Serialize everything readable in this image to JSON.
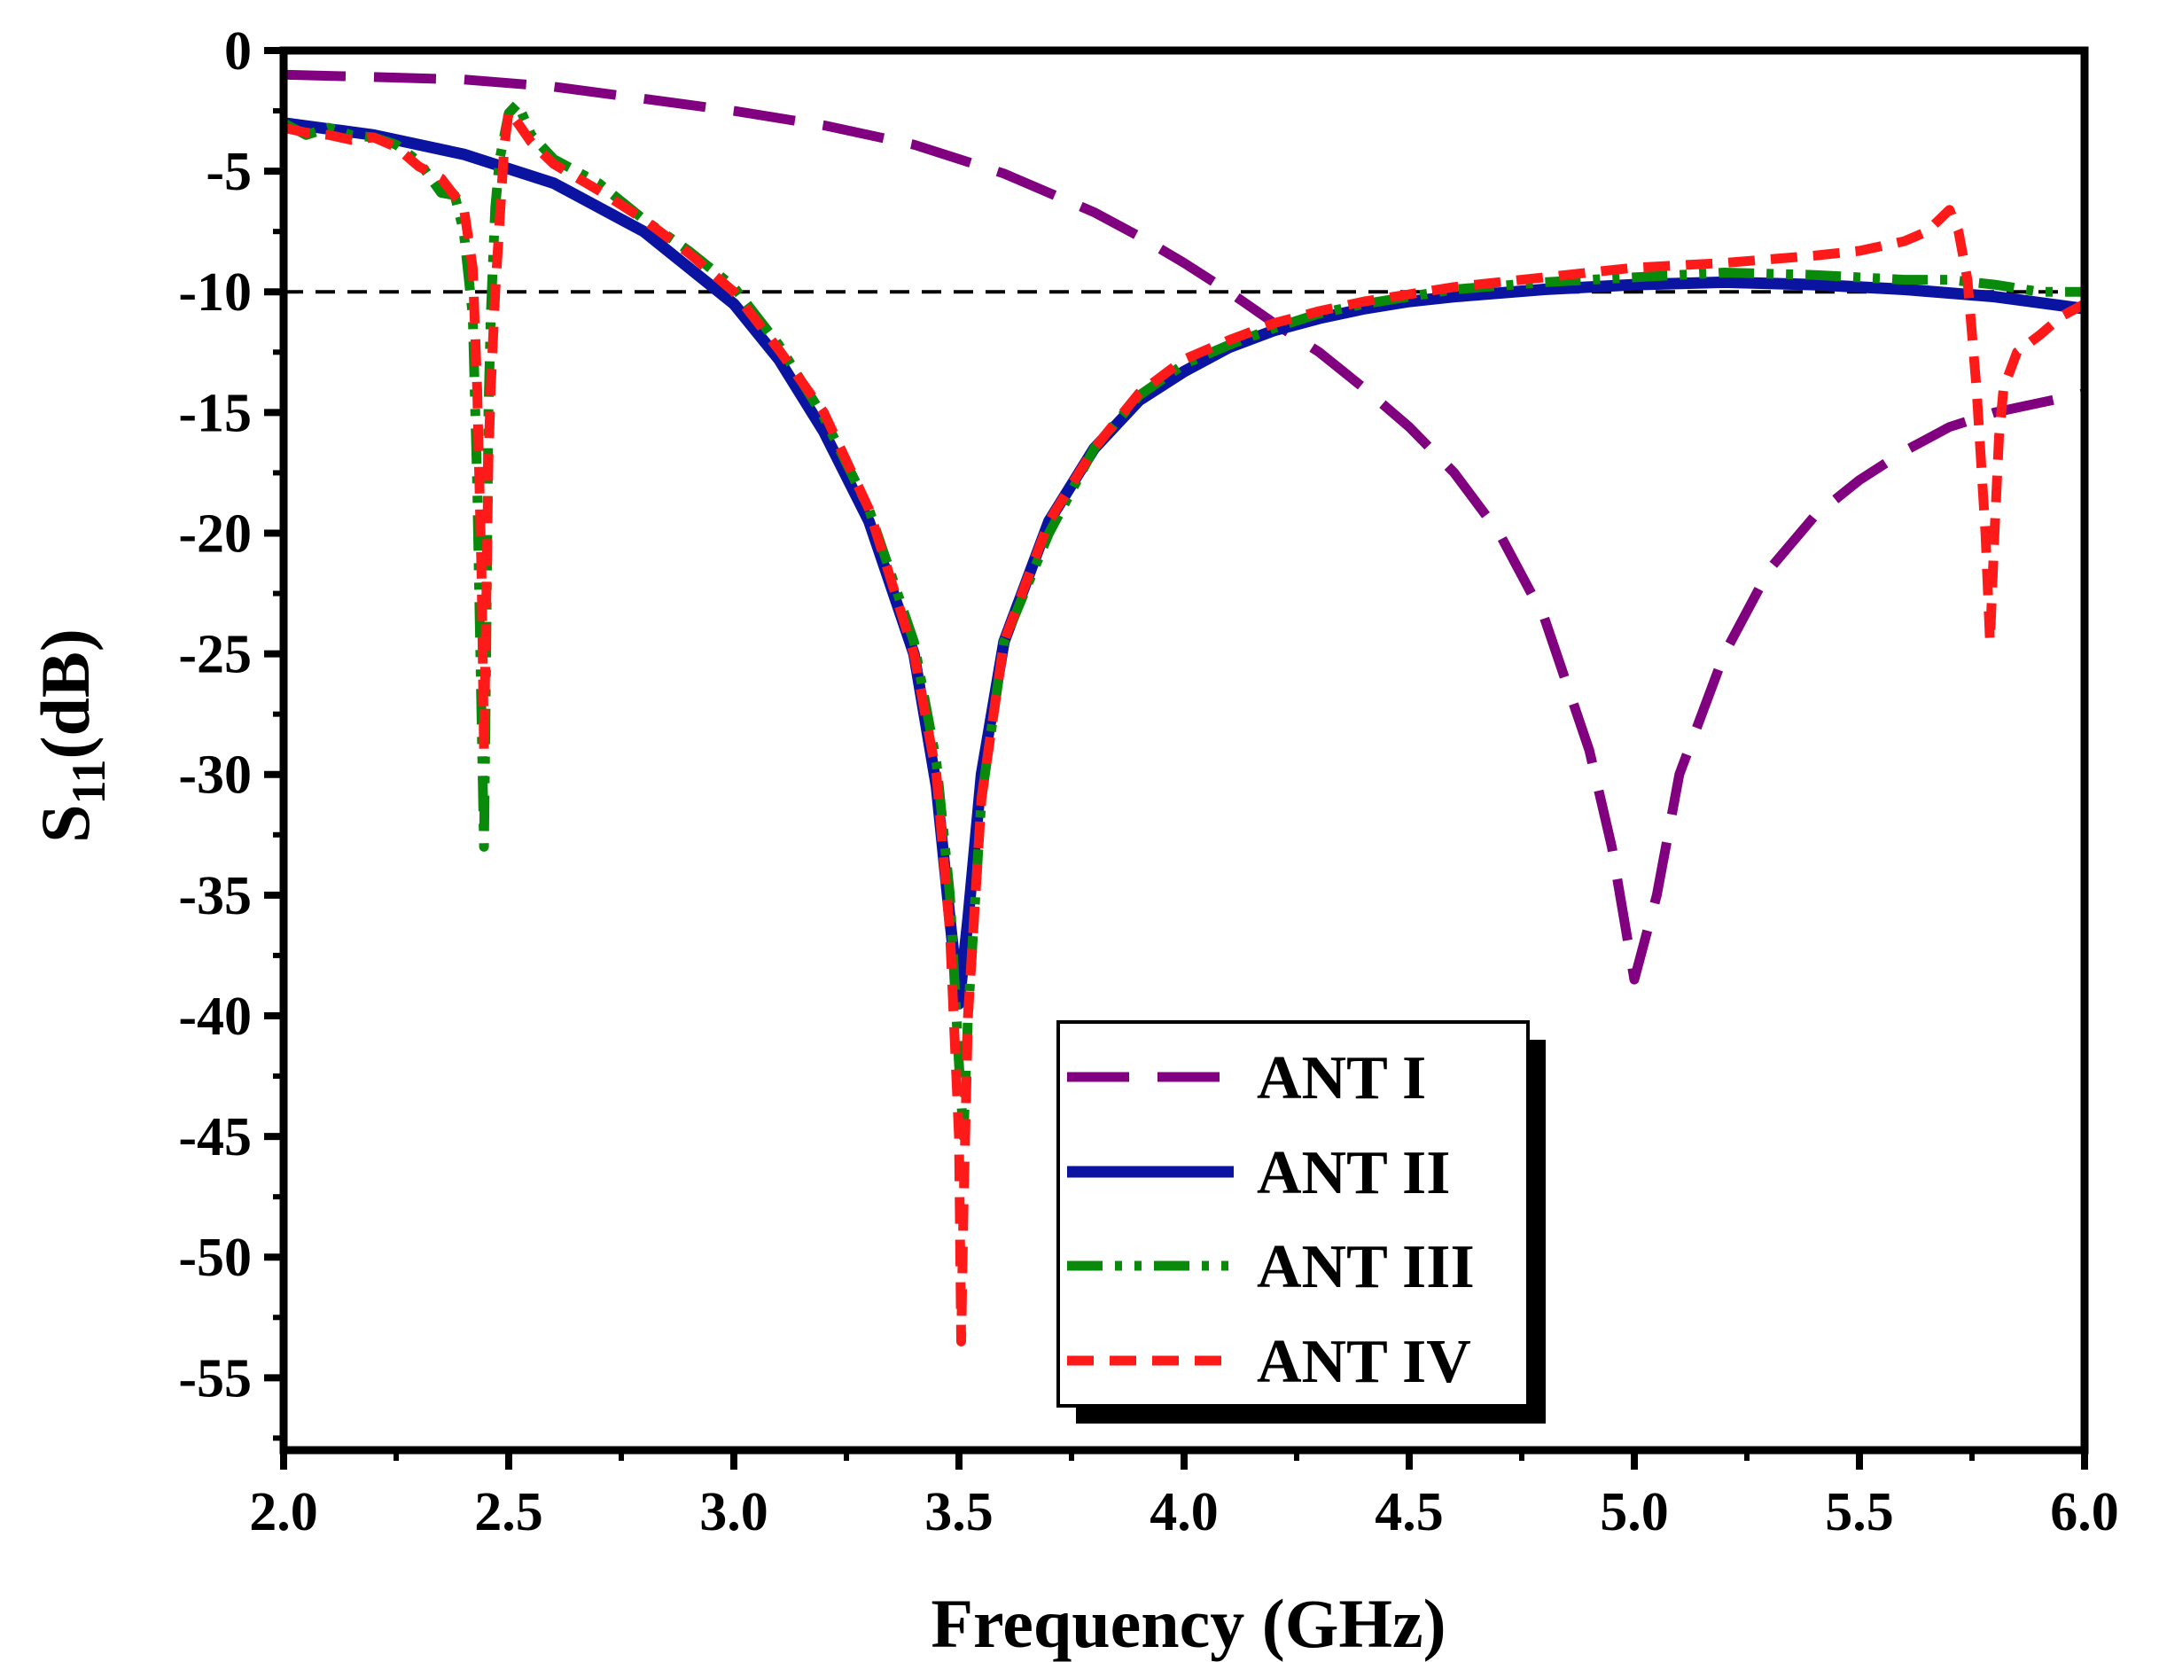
{
  "chart_data": {
    "type": "line",
    "title": "",
    "xlabel": "Frequency (GHz)",
    "ylabel_main": "S",
    "ylabel_sub": "11",
    "ylabel_unit": "(dB)",
    "xlim": [
      2.0,
      6.0
    ],
    "ylim": [
      -58,
      0
    ],
    "xticks": [
      "2.0",
      "2.5",
      "3.0",
      "3.5",
      "4.0",
      "4.5",
      "5.0",
      "5.5",
      "6.0"
    ],
    "yticks": [
      "0",
      "-5",
      "-10",
      "-15",
      "-20",
      "-25",
      "-30",
      "-35",
      "-40",
      "-45",
      "-50",
      "-55"
    ],
    "reference_line": -10,
    "legend_position": "bottom-center",
    "series": [
      {
        "name": "ANT I",
        "color": "#800080",
        "dash": "dashed-long",
        "x": [
          2.0,
          2.2,
          2.4,
          2.6,
          2.8,
          3.0,
          3.2,
          3.4,
          3.6,
          3.8,
          3.9,
          4.0,
          4.1,
          4.2,
          4.3,
          4.4,
          4.5,
          4.6,
          4.7,
          4.8,
          4.9,
          4.95,
          5.0,
          5.05,
          5.1,
          5.2,
          5.3,
          5.4,
          5.5,
          5.6,
          5.7,
          5.8,
          5.9,
          6.0
        ],
        "y": [
          -1.0,
          -1.1,
          -1.2,
          -1.5,
          -2.0,
          -2.5,
          -3.1,
          -3.9,
          -5.1,
          -6.7,
          -7.7,
          -8.8,
          -10.0,
          -11.3,
          -12.5,
          -14.0,
          -15.6,
          -17.5,
          -20.0,
          -23.5,
          -29.0,
          -33.0,
          -38.5,
          -35.0,
          -30.0,
          -25.0,
          -21.5,
          -19.3,
          -17.8,
          -16.6,
          -15.6,
          -15.0,
          -14.6,
          -14.2
        ]
      },
      {
        "name": "ANT II",
        "color": "#0a14a0",
        "dash": "solid",
        "x": [
          2.0,
          2.2,
          2.4,
          2.6,
          2.8,
          3.0,
          3.1,
          3.2,
          3.3,
          3.4,
          3.45,
          3.48,
          3.5,
          3.52,
          3.55,
          3.6,
          3.7,
          3.8,
          3.9,
          4.0,
          4.1,
          4.2,
          4.3,
          4.4,
          4.5,
          4.6,
          4.8,
          5.0,
          5.2,
          5.4,
          5.6,
          5.8,
          6.0
        ],
        "y": [
          -3.0,
          -3.5,
          -4.3,
          -5.5,
          -7.5,
          -10.5,
          -12.8,
          -15.8,
          -19.5,
          -25.0,
          -30.5,
          -36.0,
          -39.5,
          -36.0,
          -30.0,
          -24.5,
          -19.5,
          -16.5,
          -14.5,
          -13.3,
          -12.3,
          -11.6,
          -11.1,
          -10.7,
          -10.4,
          -10.2,
          -9.9,
          -9.7,
          -9.6,
          -9.7,
          -9.9,
          -10.2,
          -10.7
        ]
      },
      {
        "name": "ANT III",
        "color": "#0a8a0a",
        "dash": "dash-dot-dot",
        "x": [
          2.0,
          2.05,
          2.1,
          2.15,
          2.2,
          2.25,
          2.3,
          2.35,
          2.38,
          2.4,
          2.42,
          2.43,
          2.44,
          2.445,
          2.45,
          2.455,
          2.46,
          2.47,
          2.48,
          2.5,
          2.52,
          2.55,
          2.6,
          2.7,
          2.8,
          2.9,
          3.0,
          3.1,
          3.2,
          3.3,
          3.4,
          3.45,
          3.48,
          3.5,
          3.51,
          3.52,
          3.55,
          3.6,
          3.7,
          3.8,
          3.9,
          4.0,
          4.1,
          4.2,
          4.3,
          4.4,
          4.5,
          4.6,
          4.8,
          5.0,
          5.2,
          5.4,
          5.6,
          5.7,
          5.8,
          5.9,
          6.0
        ],
        "y": [
          -3.0,
          -3.5,
          -3.2,
          -3.5,
          -3.6,
          -3.9,
          -4.6,
          -5.9,
          -6.0,
          -7.5,
          -11.0,
          -18.0,
          -28.0,
          -33.0,
          -25.0,
          -15.0,
          -11.0,
          -6.5,
          -4.5,
          -2.6,
          -2.2,
          -3.5,
          -4.5,
          -5.5,
          -7.0,
          -8.3,
          -9.8,
          -12.2,
          -15.2,
          -19.0,
          -24.5,
          -29.5,
          -35.0,
          -42.0,
          -45.0,
          -40.0,
          -31.0,
          -24.5,
          -20.0,
          -16.5,
          -14.3,
          -13.0,
          -12.2,
          -11.5,
          -10.9,
          -10.5,
          -10.2,
          -9.9,
          -9.6,
          -9.4,
          -9.2,
          -9.3,
          -9.5,
          -9.5,
          -9.7,
          -10.0,
          -10.0
        ]
      },
      {
        "name": "ANT IV",
        "color": "#ff1a1a",
        "dash": "dashed-short",
        "x": [
          2.0,
          2.05,
          2.1,
          2.15,
          2.2,
          2.25,
          2.3,
          2.35,
          2.4,
          2.42,
          2.43,
          2.44,
          2.445,
          2.45,
          2.455,
          2.46,
          2.47,
          2.48,
          2.49,
          2.5,
          2.52,
          2.55,
          2.6,
          2.7,
          2.8,
          2.9,
          3.0,
          3.1,
          3.2,
          3.3,
          3.4,
          3.45,
          3.48,
          3.5,
          3.505,
          3.51,
          3.52,
          3.55,
          3.6,
          3.7,
          3.8,
          3.9,
          4.0,
          4.1,
          4.2,
          4.3,
          4.4,
          4.5,
          4.6,
          4.8,
          5.0,
          5.2,
          5.4,
          5.5,
          5.6,
          5.65,
          5.7,
          5.72,
          5.74,
          5.76,
          5.78,
          5.79,
          5.8,
          5.81,
          5.82,
          5.85,
          5.9,
          5.95,
          6.0
        ],
        "y": [
          -3.2,
          -3.4,
          -3.5,
          -3.7,
          -3.6,
          -4.0,
          -4.8,
          -5.3,
          -6.5,
          -9.0,
          -14.0,
          -22.0,
          -29.0,
          -23.0,
          -17.0,
          -14.0,
          -10.0,
          -7.0,
          -4.0,
          -2.5,
          -3.0,
          -3.8,
          -4.7,
          -5.8,
          -7.0,
          -8.4,
          -10.0,
          -12.4,
          -15.0,
          -19.0,
          -25.0,
          -30.0,
          -36.5,
          -45.0,
          -53.5,
          -48.0,
          -40.0,
          -31.0,
          -24.5,
          -19.5,
          -16.5,
          -14.2,
          -12.8,
          -12.0,
          -11.3,
          -10.8,
          -10.4,
          -10.1,
          -9.8,
          -9.4,
          -9.0,
          -8.8,
          -8.5,
          -8.3,
          -7.9,
          -7.5,
          -6.6,
          -7.5,
          -9.5,
          -14.0,
          -20.0,
          -24.5,
          -20.0,
          -16.0,
          -14.0,
          -12.5,
          -11.8,
          -11.0,
          -10.5
        ]
      }
    ]
  }
}
